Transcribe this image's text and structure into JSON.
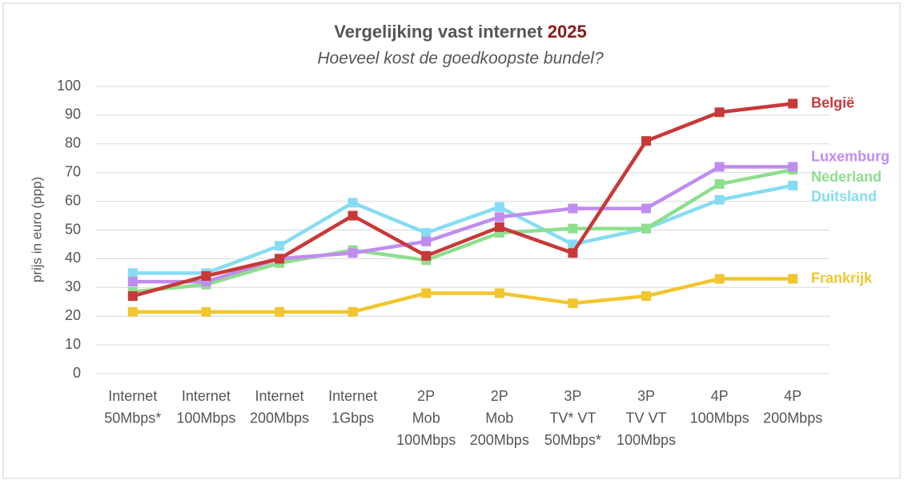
{
  "chart_data": {
    "type": "line",
    "title": "Vergelijking vast internet",
    "title_highlight": "2025",
    "subtitle": "Hoeveel kost de goedkoopste bundel?",
    "y_label": "prijs in euro (ppp)",
    "categories": [
      [
        "Internet",
        "50Mbps*"
      ],
      [
        "Internet",
        "100Mbps"
      ],
      [
        "Internet",
        "200Mbps"
      ],
      [
        "Internet",
        "1Gbps"
      ],
      [
        "2P",
        "Mob",
        "100Mbps"
      ],
      [
        "2P",
        "Mob",
        "200Mbps"
      ],
      [
        "3P",
        "TV* VT",
        "50Mbps*"
      ],
      [
        "3P",
        "TV  VT",
        "100Mbps"
      ],
      [
        "4P",
        "100Mbps"
      ],
      [
        "4P",
        "200Mbps"
      ]
    ],
    "ylim": [
      0,
      100
    ],
    "yticks": [
      0,
      10,
      20,
      30,
      40,
      50,
      60,
      70,
      80,
      90,
      100
    ],
    "grid": true,
    "series": [
      {
        "name": "Frankrijk",
        "color": "#f2c62e",
        "values": [
          21.5,
          21.5,
          21.5,
          21.5,
          28,
          28,
          24.5,
          27,
          33,
          33
        ]
      },
      {
        "name": "Duitsland",
        "color": "#86dcf4",
        "values": [
          35,
          35,
          44.5,
          59.5,
          49,
          58,
          45,
          50.5,
          60.5,
          65.5
        ]
      },
      {
        "name": "Nederland",
        "color": "#8ddf8d",
        "values": [
          28.5,
          31,
          38.5,
          43,
          39.5,
          49,
          50.5,
          50.5,
          66,
          71
        ]
      },
      {
        "name": "Luxemburg",
        "color": "#c08cf0",
        "values": [
          32,
          32,
          40,
          42,
          46,
          54.5,
          57.5,
          57.5,
          72,
          72
        ]
      },
      {
        "name": "België",
        "color": "#c93838",
        "values": [
          27,
          34,
          40,
          55,
          41,
          51,
          42,
          81,
          91,
          94
        ]
      }
    ]
  }
}
